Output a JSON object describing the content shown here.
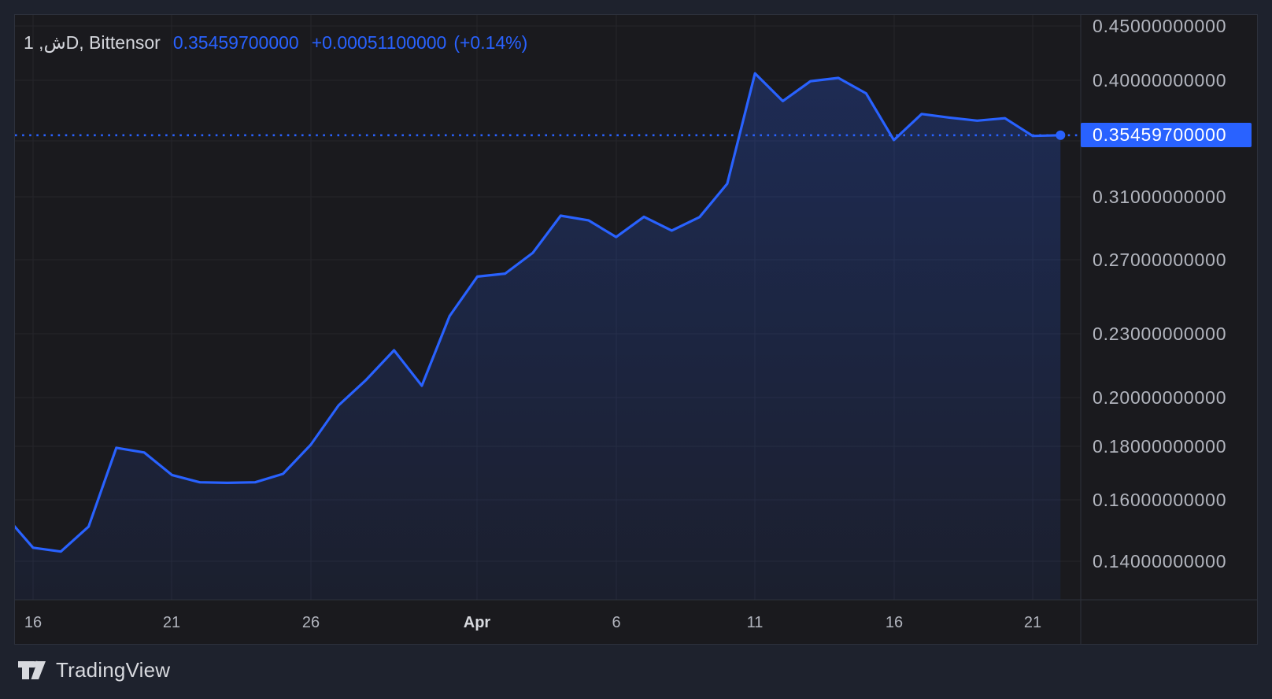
{
  "header": {
    "symbol_title": "1 ,شD, Bittensor",
    "last_price": "0.35459700000",
    "change_abs": "+0.00051100000",
    "change_pct": "(+0.14%)"
  },
  "price_axis": {
    "badge_value": "0.35459700000",
    "ticks": [
      {
        "label": "0.45000000000",
        "value": 0.45
      },
      {
        "label": "0.40000000000",
        "value": 0.4
      },
      {
        "label": "0.31000000000",
        "value": 0.31
      },
      {
        "label": "0.27000000000",
        "value": 0.27
      },
      {
        "label": "0.23000000000",
        "value": 0.23
      },
      {
        "label": "0.20000000000",
        "value": 0.2
      },
      {
        "label": "0.18000000000",
        "value": 0.18
      },
      {
        "label": "0.16000000000",
        "value": 0.16
      },
      {
        "label": "0.14000000000",
        "value": 0.14
      }
    ]
  },
  "time_axis": {
    "ticks": [
      {
        "label": "16",
        "day": 0,
        "bold": false
      },
      {
        "label": "21",
        "day": 5,
        "bold": false
      },
      {
        "label": "26",
        "day": 10,
        "bold": false
      },
      {
        "label": "Apr",
        "day": 16,
        "bold": true
      },
      {
        "label": "6",
        "day": 21,
        "bold": false
      },
      {
        "label": "11",
        "day": 26,
        "bold": false
      },
      {
        "label": "16",
        "day": 31,
        "bold": false
      },
      {
        "label": "21",
        "day": 36,
        "bold": false
      }
    ]
  },
  "footer": {
    "brand": "TradingView"
  },
  "colors": {
    "accent": "#2962ff",
    "page_bg": "#1e222d",
    "pane_bg": "#1a1a1e",
    "grid": "#25252b",
    "axis_text": "#b2b5be",
    "badge_text": "#ffffff"
  },
  "chart_data": {
    "type": "area",
    "title": "Bittensor, 1D",
    "symbol": "Bittensor",
    "interval": "1D",
    "y_scale": "log",
    "ylim": [
      0.128,
      0.462
    ],
    "grid": true,
    "legend_position": "top-left",
    "last_value": 0.354597,
    "last_change_abs": 0.000511,
    "last_change_pct": 0.14,
    "y_grid_values": [
      0.45,
      0.4,
      0.35,
      0.31,
      0.27,
      0.23,
      0.2,
      0.18,
      0.16,
      0.14
    ],
    "x": [
      "Mar 15",
      "Mar 16",
      "Mar 17",
      "Mar 18",
      "Mar 19",
      "Mar 20",
      "Mar 21",
      "Mar 22",
      "Mar 23",
      "Mar 24",
      "Mar 25",
      "Mar 26",
      "Mar 27",
      "Mar 28",
      "Mar 29",
      "Mar 30",
      "Mar 31",
      "Apr 1",
      "Apr 2",
      "Apr 3",
      "Apr 4",
      "Apr 5",
      "Apr 6",
      "Apr 7",
      "Apr 8",
      "Apr 9",
      "Apr 10",
      "Apr 11",
      "Apr 12",
      "Apr 13",
      "Apr 14",
      "Apr 15",
      "Apr 16",
      "Apr 17",
      "Apr 18",
      "Apr 19",
      "Apr 20",
      "Apr 21",
      "Apr 22"
    ],
    "values": [
      0.1546,
      0.1442,
      0.143,
      0.151,
      0.1793,
      0.1775,
      0.169,
      0.1663,
      0.1661,
      0.1663,
      0.1694,
      0.1805,
      0.1967,
      0.208,
      0.2218,
      0.2053,
      0.239,
      0.2605,
      0.2622,
      0.2744,
      0.2975,
      0.2945,
      0.284,
      0.2968,
      0.288,
      0.2966,
      0.319,
      0.4058,
      0.382,
      0.399,
      0.4018,
      0.3885,
      0.3509,
      0.3714,
      0.3685,
      0.366,
      0.368,
      0.354,
      0.354597
    ]
  }
}
